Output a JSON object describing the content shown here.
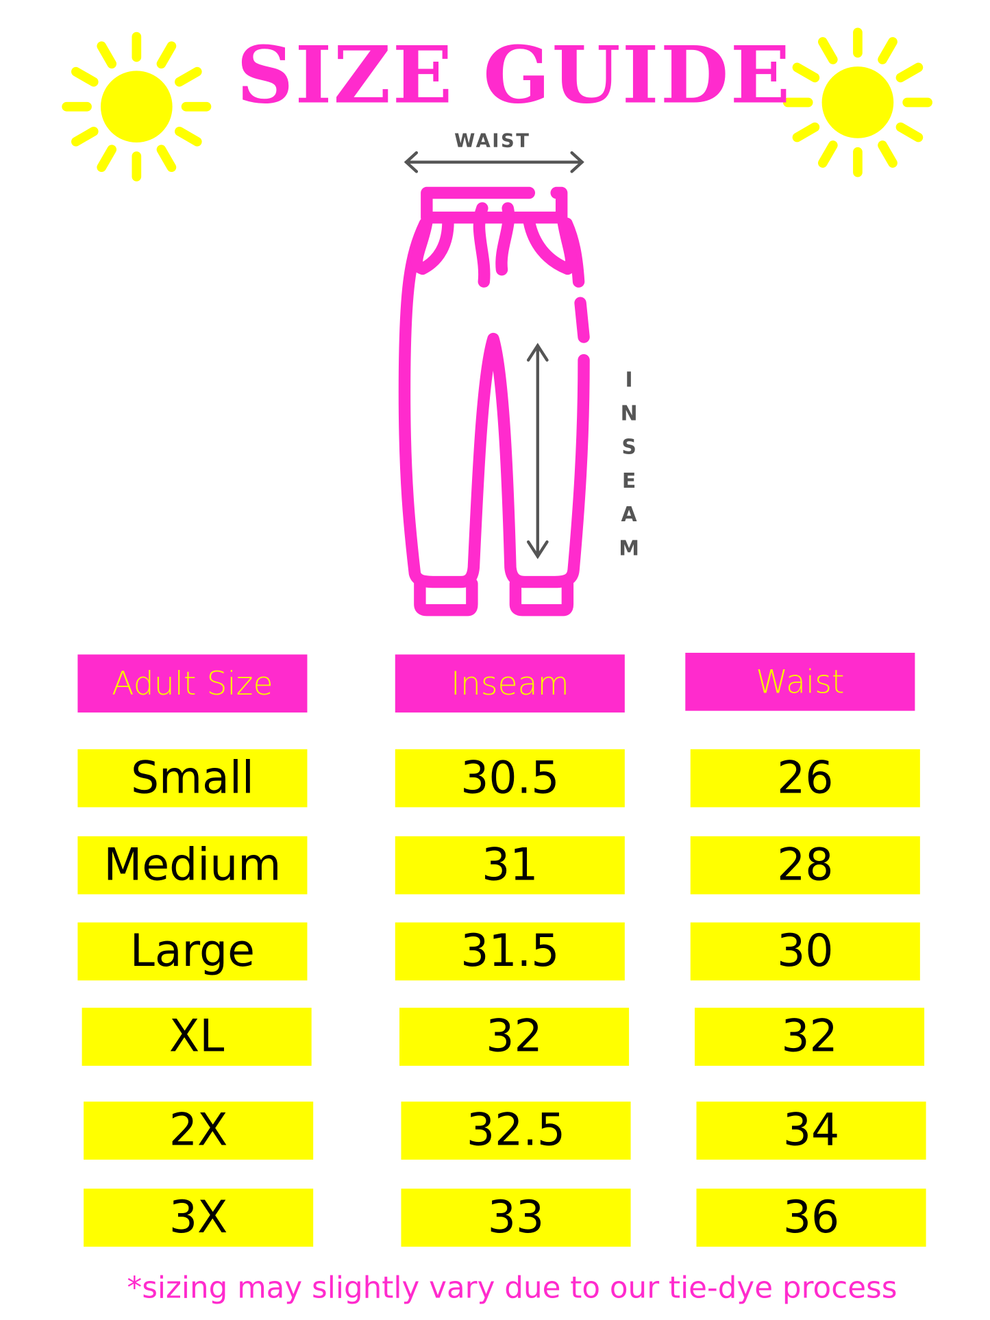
{
  "title": "SIZE GUIDE",
  "diagram": {
    "waist_label": "WAIST",
    "inseam_label": "INSEAM"
  },
  "colors": {
    "pink": "#ff2bcd",
    "yellow": "#ffff00",
    "gray": "#555555"
  },
  "icons": [
    "sun-icon",
    "pants-icon"
  ],
  "table": {
    "headers": [
      "Adult Size",
      "Inseam",
      "Waist"
    ],
    "rows": [
      [
        "Small",
        "30.5",
        "26"
      ],
      [
        "Medium",
        "31",
        "28"
      ],
      [
        "Large",
        "31.5",
        "30"
      ],
      [
        "XL",
        "32",
        "32"
      ],
      [
        "2X",
        "32.5",
        "34"
      ],
      [
        "3X",
        "33",
        "36"
      ]
    ]
  },
  "footer": "*sizing may slightly vary due to our tie-dye process"
}
